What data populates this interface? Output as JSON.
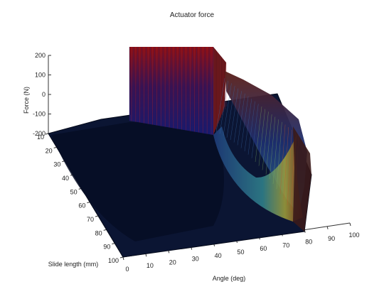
{
  "chart_data": {
    "type": "surface3d",
    "title": "Actuator force",
    "xlabel": "Angle (deg)",
    "ylabel": "Slide length (mm)",
    "zlabel": "Force (N)",
    "xlim": [
      0,
      100
    ],
    "ylim": [
      10,
      100
    ],
    "zlim": [
      -200,
      200
    ],
    "x_ticks": [
      "0",
      "10",
      "20",
      "30",
      "40",
      "50",
      "60",
      "70",
      "80",
      "90",
      "100"
    ],
    "y_ticks": [
      "10",
      "20",
      "30",
      "40",
      "50",
      "60",
      "70",
      "80",
      "90",
      "100"
    ],
    "z_ticks": [
      "200",
      "100",
      "0",
      "-100",
      "-200"
    ],
    "plateau_angle_range": [
      0,
      40
    ],
    "force_range": [
      -200,
      200
    ],
    "grid": false,
    "legend": "none",
    "colormap": "jet",
    "colors": {
      "floor": "#0b1533",
      "floor_edge": "#050a1a",
      "high": "#8a0f14",
      "low": "#151a6e",
      "axis": "#333333"
    }
  }
}
